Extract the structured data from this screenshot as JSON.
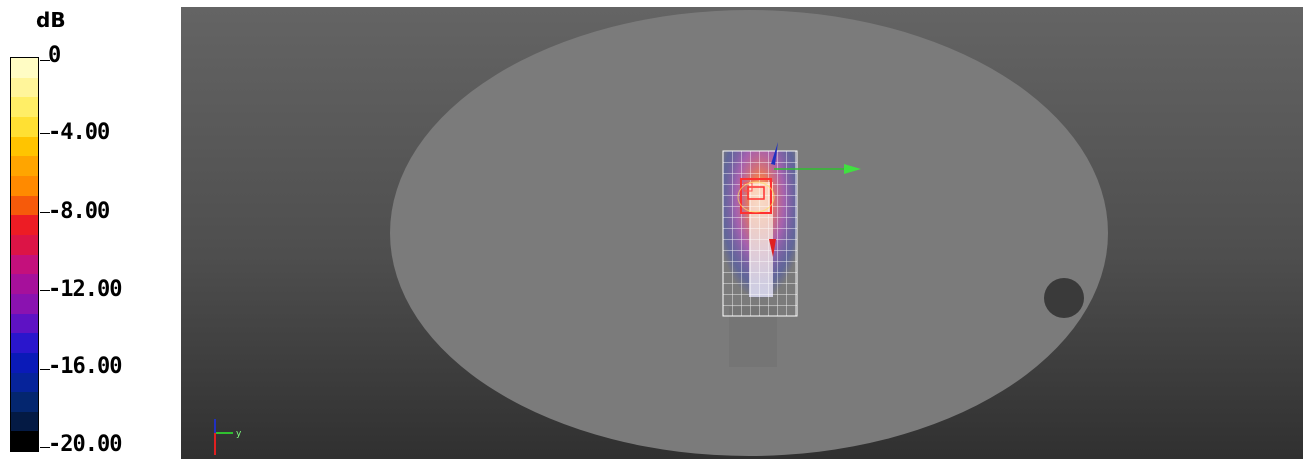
{
  "legend": {
    "unit": "dB",
    "ticks": [
      "0",
      "-4.00",
      "-8.00",
      "-12.00",
      "-16.00",
      "-20.00"
    ],
    "band_colors": [
      "#fffcc4",
      "#fff59a",
      "#ffee66",
      "#ffe033",
      "#ffc400",
      "#ffa500",
      "#ff8a00",
      "#f65a0a",
      "#ed1c24",
      "#dc1446",
      "#c4107c",
      "#a6109b",
      "#8a12b0",
      "#5e12c4",
      "#2a16cc",
      "#0a1ab8",
      "#06239a",
      "#04266f",
      "#041a44",
      "#000000"
    ]
  },
  "viewport": {
    "scene": "3D phantom view",
    "axis_triad_label": "y",
    "colors": {
      "phantom": "#7a7a7a",
      "x_axis": "#e02020",
      "y_axis": "#30c030",
      "z_axis": "#2030c0"
    }
  }
}
